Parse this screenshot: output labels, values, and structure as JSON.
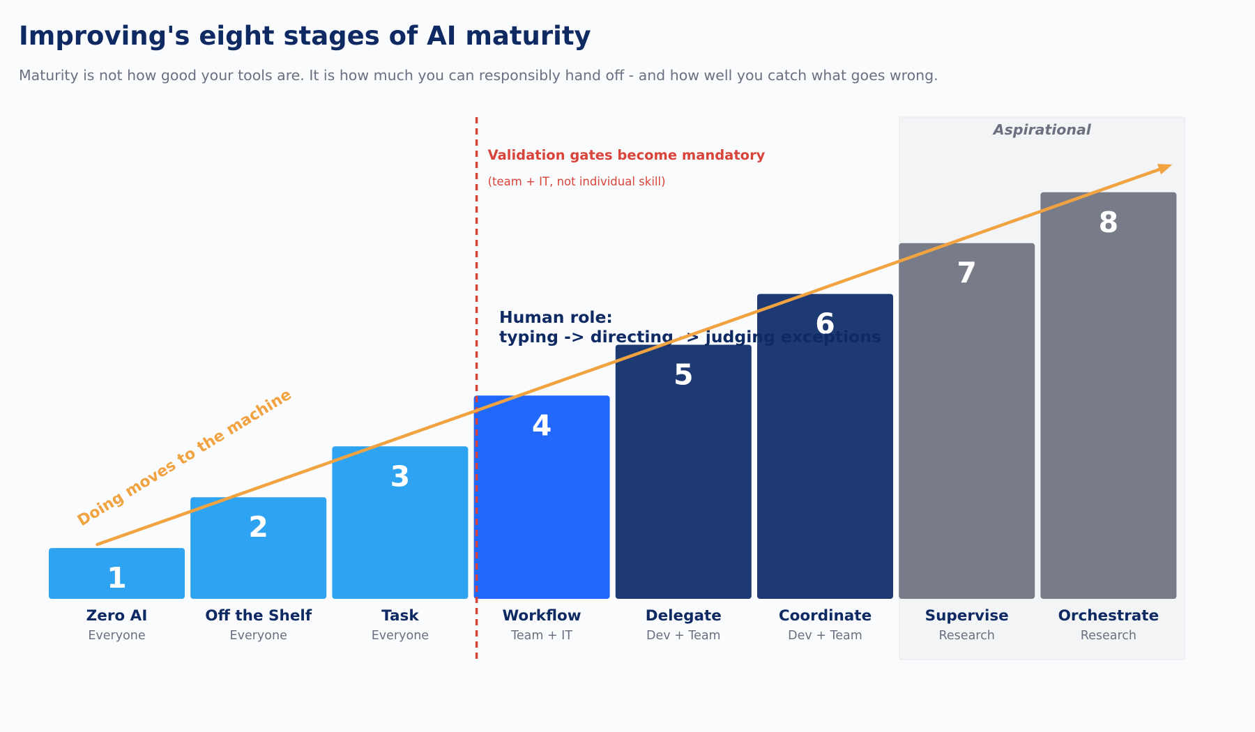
{
  "header": {
    "title": "Improving's eight stages of AI maturity",
    "subtitle": "Maturity is not how good your tools are. It is how much you can responsibly hand off - and how well you catch what goes wrong."
  },
  "chart_data": {
    "type": "bar",
    "categories": [
      "Zero AI",
      "Off the Shelf",
      "Task",
      "Workflow",
      "Delegate",
      "Coordinate",
      "Supervise",
      "Orchestrate"
    ],
    "audiences": [
      "Everyone",
      "Everyone",
      "Everyone",
      "Team + IT",
      "Dev + Team",
      "Dev + Team",
      "Research",
      "Research"
    ],
    "values": [
      1,
      2,
      3,
      4,
      5,
      6,
      7,
      8
    ],
    "value_labels": [
      "1",
      "2",
      "3",
      "4",
      "5",
      "6",
      "7",
      "8"
    ],
    "bar_colors": [
      "#2ea3f2",
      "#2ea3f2",
      "#2ea3f2",
      "#2069fc",
      "#1e3a72",
      "#1e3a72",
      "#777c88",
      "#777c88"
    ],
    "ylim": [
      0,
      9.5
    ],
    "grid": false,
    "legend": "none",
    "annotations": {
      "gate_line": {
        "between": [
          3,
          4
        ],
        "title": "Validation gates become mandatory",
        "note": "(team + IT, not individual skill)",
        "color": "#d9443a"
      },
      "aspirational_band": {
        "from": 7,
        "to": 8,
        "label": "Aspirational",
        "color": "#f3f4f6"
      },
      "trend_arrow": {
        "from": 1,
        "to": 8,
        "label": "Doing moves to the machine",
        "color": "#f0a340"
      },
      "human_role": {
        "line1": "Human role:",
        "line2": "typing -> directing -> judging exceptions"
      }
    },
    "colors": {
      "category_label": "#0f2a63",
      "audience_label": "#6b7080",
      "bar_number": "#ffffff"
    }
  }
}
